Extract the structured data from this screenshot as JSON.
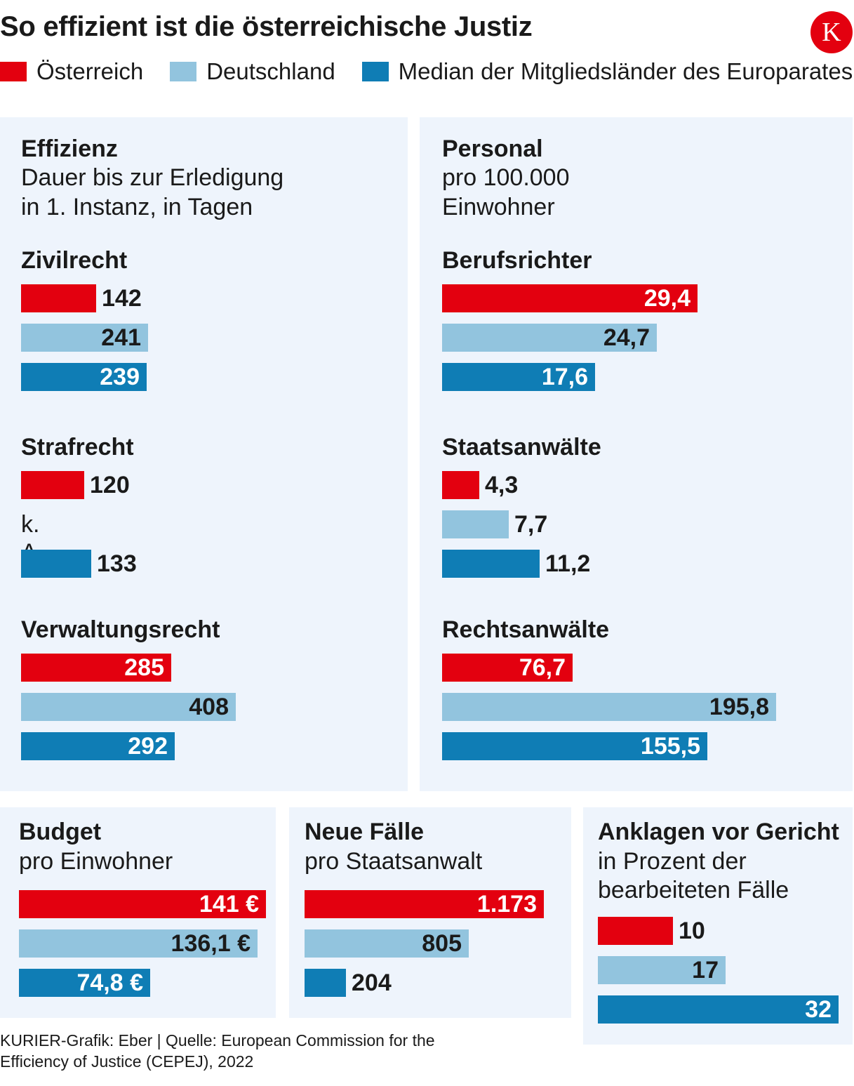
{
  "header": {
    "title": "So effizient ist die österreichische Justiz",
    "logo_letter": "K"
  },
  "legend": [
    {
      "label": "Österreich",
      "color": "#e3000f"
    },
    {
      "label": "Deutschland",
      "color": "#92c4de"
    },
    {
      "label": "Median der Mitgliedsländer des Europarates",
      "color": "#0f7db5"
    }
  ],
  "panels": {
    "effizienz": {
      "title": "Effizienz",
      "subtitle_1": "Dauer bis zur Erledigung",
      "subtitle_2": "in 1. Instanz, in Tagen"
    },
    "personal": {
      "title": "Personal",
      "subtitle_1": "pro 100.000",
      "subtitle_2": "Einwohner"
    },
    "budget": {
      "title": "Budget",
      "subtitle_1": "pro Einwohner"
    },
    "faelle": {
      "title": "Neue Fälle",
      "subtitle_1": "pro Staatsanwalt"
    },
    "anklagen": {
      "title": "Anklagen vor Gericht",
      "subtitle_1": "in Prozent der",
      "subtitle_2": "bearbeiteten Fälle"
    }
  },
  "chart_data": [
    {
      "id": "zivil",
      "type": "bar",
      "orientation": "horizontal",
      "panel": "Effizienz",
      "title": "Zivilrecht",
      "series": [
        "Österreich",
        "Deutschland",
        "Median der Mitgliedsländer des Europarates"
      ],
      "values": [
        142,
        241,
        239
      ],
      "labels": [
        "142",
        "241",
        "239"
      ],
      "xlim": [
        0,
        408
      ]
    },
    {
      "id": "straf",
      "type": "bar",
      "orientation": "horizontal",
      "panel": "Effizienz",
      "title": "Strafrecht",
      "series": [
        "Österreich",
        "Deutschland",
        "Median der Mitgliedsländer des Europarates"
      ],
      "values": [
        120,
        null,
        133
      ],
      "labels": [
        "120",
        "k. A.",
        "133"
      ],
      "xlim": [
        0,
        408
      ]
    },
    {
      "id": "verw",
      "type": "bar",
      "orientation": "horizontal",
      "panel": "Effizienz",
      "title": "Verwaltungsrecht",
      "series": [
        "Österreich",
        "Deutschland",
        "Median der Mitgliedsländer des Europarates"
      ],
      "values": [
        285,
        408,
        292
      ],
      "labels": [
        "285",
        "408",
        "292"
      ],
      "xlim": [
        0,
        408
      ]
    },
    {
      "id": "richter",
      "type": "bar",
      "orientation": "horizontal",
      "panel": "Personal",
      "title": "Berufsrichter",
      "series": [
        "Österreich",
        "Deutschland",
        "Median der Mitgliedsländer des Europarates"
      ],
      "values": [
        29.4,
        24.7,
        17.6
      ],
      "labels": [
        "29,4",
        "24,7",
        "17,6"
      ],
      "xlim": [
        0,
        38.4
      ]
    },
    {
      "id": "staatsanw",
      "type": "bar",
      "orientation": "horizontal",
      "panel": "Personal",
      "title": "Staatsanwälte",
      "series": [
        "Österreich",
        "Deutschland",
        "Median der Mitgliedsländer des Europarates"
      ],
      "values": [
        4.3,
        7.7,
        11.2
      ],
      "labels": [
        "4,3",
        "7,7",
        "11,2"
      ],
      "xlim": [
        0,
        38.4
      ]
    },
    {
      "id": "rechtsanw",
      "type": "bar",
      "orientation": "horizontal",
      "panel": "Personal",
      "title": "Rechtsanwälte",
      "series": [
        "Österreich",
        "Deutschland",
        "Median der Mitgliedsländer des Europarates"
      ],
      "values": [
        76.7,
        195.8,
        155.5
      ],
      "labels": [
        "76,7",
        "195,8",
        "155,5"
      ],
      "xlim": [
        0,
        195.8
      ]
    },
    {
      "id": "budget",
      "type": "bar",
      "orientation": "horizontal",
      "panel": "Budget",
      "title": "pro Einwohner",
      "series": [
        "Österreich",
        "Deutschland",
        "Median der Mitgliedsländer des Europarates"
      ],
      "values": [
        141,
        136.1,
        74.8
      ],
      "labels": [
        "141 €",
        "136,1 €",
        "74,8 €"
      ],
      "xlim": [
        0,
        141
      ]
    },
    {
      "id": "faelle",
      "type": "bar",
      "orientation": "horizontal",
      "panel": "Neue Fälle",
      "title": "pro Staatsanwalt",
      "series": [
        "Österreich",
        "Deutschland",
        "Median der Mitgliedsländer des Europarates"
      ],
      "values": [
        1173,
        805,
        204
      ],
      "labels": [
        "1.173",
        "805",
        "204"
      ],
      "xlim": [
        0,
        1173
      ]
    },
    {
      "id": "anklagen",
      "type": "bar",
      "orientation": "horizontal",
      "panel": "Anklagen vor Gericht",
      "title": "in Prozent der bearbeiteten Fälle",
      "series": [
        "Österreich",
        "Deutschland",
        "Median der Mitgliedsländer des Europarates"
      ],
      "values": [
        10,
        17,
        32
      ],
      "labels": [
        "10",
        "17",
        "32"
      ],
      "xlim": [
        0,
        32
      ]
    }
  ],
  "footer": {
    "source_line_1": "KURIER-Grafik: Eber | Quelle: European Commission for the",
    "source_line_2": "Efficiency of Justice (CEPEJ), 2022"
  }
}
